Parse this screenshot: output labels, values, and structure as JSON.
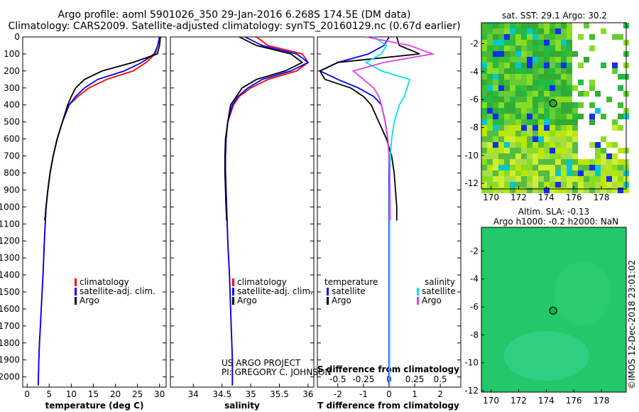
{
  "title_line1": "Argo profile: aoml 5901026_350 29-Jan-2016 6.268S 174.5E (DM data)",
  "title_line2": "Climatology: CARS2009. Satellite-adjusted climatology: synTS_20160129.nc (0.67d earlier)",
  "credit_line1": "US ARGO PROJECT",
  "credit_line2": "PI: GREGORY C. JOHNSON",
  "stamp": "©IMOS 12-Dec-2018 23:01:02",
  "colors": {
    "climatology": "#ff0000",
    "satellite": "#0000ff",
    "argo": "#000000",
    "sal_satellite": "#00e5e5",
    "sal_argo": "#e040e0",
    "sst_map": "#22bb33",
    "sla_map": "#33cc66"
  },
  "panels": {
    "temperature": {
      "xlabel": "temperature (deg C)",
      "xticks": [
        "0",
        "5",
        "10",
        "15",
        "20",
        "25",
        "30"
      ],
      "legend": [
        "climatology",
        "satellite-adj. clim.",
        "Argo"
      ]
    },
    "salinity": {
      "xlabel": "salinity",
      "xticks": [
        "34",
        "34.5",
        "35",
        "35.5",
        "36"
      ],
      "legend": [
        "climatology",
        "satellite-adj. clim.",
        "Argo"
      ]
    },
    "difference": {
      "xlabel": "T difference from climatology",
      "top_label": "S difference from climatology",
      "xticks": [
        "-2",
        "-1",
        "0",
        "1",
        "2"
      ],
      "sticks": [
        "-0.5",
        "-0.25",
        "0",
        "0.25",
        "0.5"
      ],
      "legend_t_title": "temperature",
      "legend_s_title": "salinity",
      "legend_t": [
        "satellite",
        "Argo"
      ],
      "legend_s": [
        "satellite",
        "Argo"
      ]
    }
  },
  "depth_ticks": [
    "0",
    "100",
    "200",
    "300",
    "400",
    "500",
    "600",
    "700",
    "800",
    "900",
    "1000",
    "1100",
    "1200",
    "1300",
    "1400",
    "1500",
    "1600",
    "1700",
    "1800",
    "1900",
    "2000"
  ],
  "maps": {
    "sst": {
      "title": "sat. SST: 29.1 Argo: 30.2",
      "yticks": [
        "-2",
        "-4",
        "-6",
        "-8",
        "-10",
        "-12"
      ],
      "xticks": [
        "170",
        "172",
        "174",
        "176",
        "178"
      ]
    },
    "sla": {
      "title1": "Altim. SLA: -0.13",
      "title2": "Argo h1000: -0.2 h2000: NaN",
      "yticks": [
        "-2",
        "-4",
        "-6",
        "-8",
        "-10",
        "-12"
      ],
      "xticks": [
        "170",
        "172",
        "174",
        "176",
        "178"
      ]
    },
    "float_position": {
      "lon": 174.5,
      "lat": -6.268
    }
  },
  "chart_data": [
    {
      "type": "line",
      "title": "",
      "xlabel": "temperature (deg C)",
      "ylabel": "",
      "xlim": [
        -1,
        31.5
      ],
      "ylim": [
        2060,
        0
      ],
      "series": [
        {
          "name": "climatology",
          "x": [
            30,
            29.6,
            29,
            27,
            24,
            18,
            14,
            11.5,
            9.5,
            8,
            6.8,
            5.9,
            5.2,
            4.7,
            4.3,
            3.9,
            3.6,
            3.4,
            3.2,
            3.0,
            2.8,
            2.65,
            2.5
          ],
          "y": [
            0,
            50,
            100,
            150,
            200,
            250,
            300,
            350,
            400,
            500,
            600,
            700,
            800,
            900,
            1000,
            1200,
            1400,
            1500,
            1600,
            1700,
            1800,
            1900,
            2050
          ]
        },
        {
          "name": "satellite-adj. clim.",
          "x": [
            30,
            29.6,
            28.8,
            26,
            22,
            16,
            13,
            11,
            9.5,
            8,
            6.8,
            5.9,
            5.2,
            4.7,
            4.3,
            3.9,
            3.6,
            3.4,
            3.2,
            3.0,
            2.8,
            2.65,
            2.5
          ],
          "y": [
            0,
            50,
            100,
            150,
            200,
            250,
            300,
            350,
            400,
            500,
            600,
            700,
            800,
            900,
            1000,
            1200,
            1400,
            1500,
            1600,
            1700,
            1800,
            1900,
            2050
          ]
        },
        {
          "name": "Argo",
          "x": [
            30.2,
            30,
            29.5,
            24,
            17,
            13,
            11,
            10,
            9.2,
            8,
            6.8,
            5.9,
            5.2,
            4.7,
            4.3,
            4.0
          ],
          "y": [
            0,
            50,
            100,
            150,
            200,
            250,
            300,
            350,
            400,
            500,
            600,
            700,
            800,
            900,
            1000,
            1080
          ]
        }
      ]
    },
    {
      "type": "line",
      "title": "",
      "xlabel": "salinity",
      "ylabel": "",
      "xlim": [
        33.6,
        36.1
      ],
      "ylim": [
        2060,
        0
      ],
      "series": [
        {
          "name": "climatology",
          "x": [
            35.1,
            35.3,
            35.9,
            36.0,
            35.8,
            35.3,
            35.0,
            34.8,
            34.7,
            34.6,
            34.57,
            34.56,
            34.56,
            34.57,
            34.58,
            34.6,
            34.63,
            34.65,
            34.66,
            34.67,
            34.68,
            34.68
          ],
          "y": [
            0,
            50,
            100,
            150,
            200,
            250,
            300,
            350,
            400,
            500,
            600,
            700,
            800,
            900,
            1000,
            1200,
            1400,
            1600,
            1700,
            1800,
            1900,
            2050
          ]
        },
        {
          "name": "satellite-adj. clim.",
          "x": [
            34.9,
            35.2,
            35.8,
            36.0,
            35.7,
            35.2,
            34.95,
            34.78,
            34.68,
            34.6,
            34.57,
            34.56,
            34.56,
            34.57,
            34.58,
            34.6,
            34.63,
            34.65,
            34.66,
            34.67,
            34.68,
            34.68
          ],
          "y": [
            0,
            50,
            100,
            150,
            200,
            250,
            300,
            350,
            400,
            500,
            600,
            700,
            800,
            900,
            1000,
            1200,
            1400,
            1600,
            1700,
            1800,
            1900,
            2050
          ]
        },
        {
          "name": "Argo",
          "x": [
            34.8,
            35.1,
            35.7,
            35.9,
            35.6,
            35.1,
            34.85,
            34.75,
            34.65,
            34.6,
            34.56,
            34.55,
            34.55,
            34.56,
            34.57,
            34.58
          ],
          "y": [
            0,
            50,
            100,
            150,
            200,
            250,
            300,
            350,
            400,
            500,
            600,
            700,
            800,
            900,
            1000,
            1080
          ]
        }
      ]
    },
    {
      "type": "line",
      "title": "",
      "xlabel": "T difference from climatology",
      "ylabel": "",
      "xlim": [
        -2.8,
        2.8
      ],
      "ylim": [
        2060,
        0
      ],
      "series": [
        {
          "name": "temperature satellite",
          "x": [
            0,
            -0.2,
            -0.8,
            -2.0,
            -2.7,
            -2.0,
            -1.2,
            -0.6,
            -0.3,
            -0.15,
            -0.05,
            0,
            0,
            0,
            0,
            0,
            0,
            0,
            0,
            0
          ],
          "y": [
            0,
            50,
            100,
            150,
            200,
            250,
            300,
            350,
            400,
            500,
            600,
            700,
            800,
            900,
            1000,
            1200,
            1400,
            1600,
            1800,
            2050
          ]
        },
        {
          "name": "temperature Argo",
          "x": [
            0.3,
            0.4,
            1.2,
            -2.0,
            -2.7,
            -2.5,
            -1.5,
            -1.0,
            -0.7,
            -0.4,
            -0.1,
            0.1,
            0.2,
            0.25,
            0.3,
            0.3
          ],
          "y": [
            0,
            50,
            100,
            150,
            200,
            250,
            300,
            350,
            400,
            500,
            600,
            700,
            800,
            900,
            1000,
            1080
          ]
        },
        {
          "name": "salinity satellite",
          "x": [
            -0.6,
            -0.1,
            -0.3,
            -0.9,
            -0.3,
            0.8,
            0.7,
            0.6,
            0.4,
            0.2,
            0.1,
            0.05,
            0.03,
            0.02,
            0.02,
            0.02,
            0.02,
            0.02,
            0.02,
            0.02
          ],
          "y": [
            0,
            50,
            100,
            150,
            200,
            250,
            300,
            350,
            400,
            500,
            600,
            700,
            800,
            900,
            1000,
            1200,
            1400,
            1600,
            1800,
            2050
          ]
        },
        {
          "name": "salinity Argo",
          "x": [
            -0.9,
            0.8,
            1.7,
            -0.2,
            -1.4,
            -1.0,
            -0.6,
            -0.4,
            -0.3,
            -0.15,
            -0.05,
            0,
            0.02,
            0.03,
            0.04,
            0.04
          ],
          "y": [
            0,
            50,
            100,
            150,
            200,
            250,
            300,
            350,
            400,
            500,
            600,
            700,
            800,
            900,
            1000,
            1080
          ]
        }
      ]
    }
  ]
}
